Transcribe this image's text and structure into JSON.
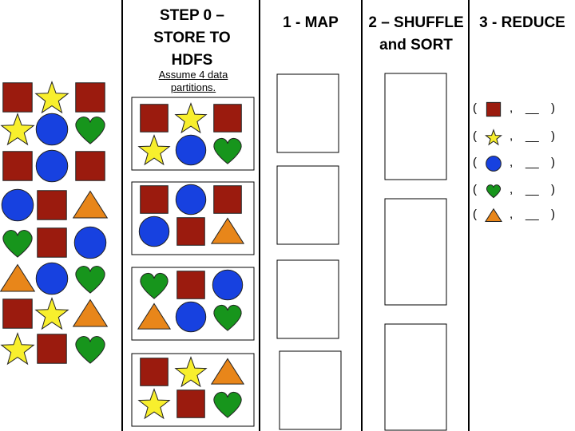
{
  "columns": {
    "step0": {
      "title_line1": "STEP 0 –",
      "title_line2": "STORE  TO",
      "title_line3": "HDFS",
      "note_line1": "Assume 4 data",
      "note_line2": "partitions."
    },
    "map": {
      "title": "1 - MAP"
    },
    "shuffle": {
      "title_line1": "2 – SHUFFLE",
      "title_line2": "and SORT"
    },
    "reduce": {
      "title": "3 - REDUCE"
    }
  },
  "colors": {
    "square": "#9b1b0e",
    "star": "#f8ef2d",
    "circle": "#1741e0",
    "heart": "#17951c",
    "triangle": "#e8861a"
  },
  "input_shapes": [
    [
      "square",
      "star",
      "square"
    ],
    [
      "star",
      "circle",
      "heart"
    ],
    [
      "square",
      "circle",
      "square"
    ],
    [
      "circle",
      "square",
      "triangle"
    ],
    [
      "heart",
      "square",
      "circle"
    ],
    [
      "triangle",
      "circle",
      "heart"
    ],
    [
      "square",
      "star",
      "triangle"
    ],
    [
      "star",
      "square",
      "heart"
    ]
  ],
  "partitions": [
    [
      [
        "square",
        "star",
        "square"
      ],
      [
        "star",
        "circle",
        "heart"
      ]
    ],
    [
      [
        "square",
        "circle",
        "square"
      ],
      [
        "circle",
        "square",
        "triangle"
      ]
    ],
    [
      [
        "heart",
        "square",
        "circle"
      ],
      [
        "triangle",
        "circle",
        "heart"
      ]
    ],
    [
      [
        "square",
        "star",
        "triangle"
      ],
      [
        "star",
        "square",
        "heart"
      ]
    ]
  ],
  "map_boxes": 4,
  "shuffle_boxes": 3,
  "reduce_rows": [
    {
      "shape": "square",
      "open": "(",
      "sep": ",",
      "blank": "__",
      "close": ")"
    },
    {
      "shape": "star",
      "open": "(",
      "sep": ",",
      "blank": "__",
      "close": ")"
    },
    {
      "shape": "circle",
      "open": "(",
      "sep": ",",
      "blank": "__",
      "close": ")"
    },
    {
      "shape": "heart",
      "open": "(",
      "sep": ",",
      "blank": "__",
      "close": ")"
    },
    {
      "shape": "triangle",
      "open": "(",
      "sep": ",",
      "blank": "__",
      "close": ")"
    }
  ]
}
